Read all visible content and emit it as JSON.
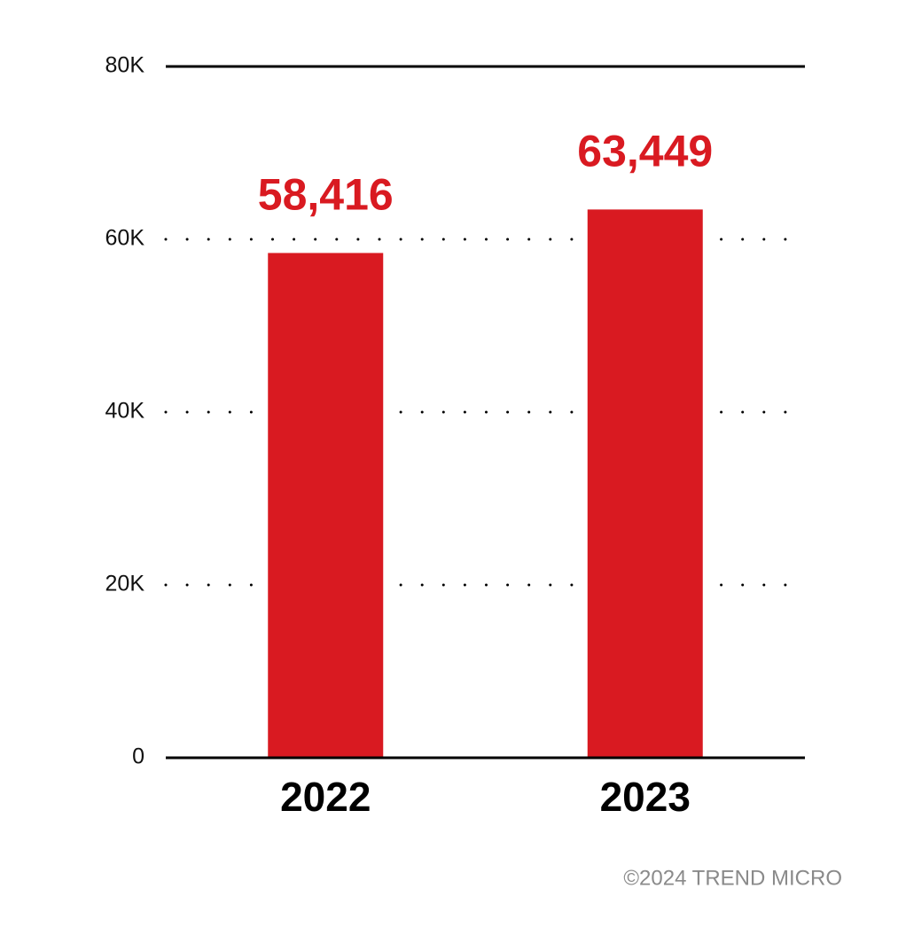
{
  "chart_data": {
    "type": "bar",
    "categories": [
      "2022",
      "2023"
    ],
    "values": [
      58416,
      63449
    ],
    "value_labels": [
      "58,416",
      "63,449"
    ],
    "color": "#d91a21",
    "ylim": [
      0,
      80000
    ],
    "yticks": [
      0,
      {
        "value": 20000,
        "label": "20K"
      },
      {
        "value": 40000,
        "label": "40K"
      },
      {
        "value": 60000,
        "label": "60K"
      },
      {
        "value": 80000,
        "label": "80K"
      }
    ],
    "grid": true,
    "credit": "©2024 TREND MICRO"
  }
}
